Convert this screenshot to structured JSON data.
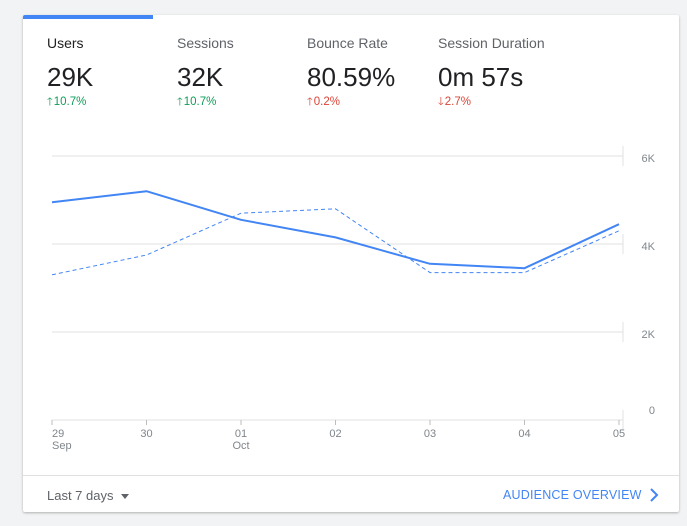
{
  "metrics": [
    {
      "label": "Users",
      "value": "29K",
      "change": "10.7%",
      "direction": "up",
      "active": true
    },
    {
      "label": "Sessions",
      "value": "32K",
      "change": "10.7%",
      "direction": "up",
      "active": false
    },
    {
      "label": "Bounce Rate",
      "value": "80.59%",
      "change": "0.2%",
      "direction": "up",
      "active": false
    },
    {
      "label": "Session Duration",
      "value": "0m 57s",
      "change": "2.7%",
      "direction": "down",
      "active": false
    }
  ],
  "colors": {
    "accent": "#4285f4",
    "positive": "#0f9d58",
    "negative": "#db4437"
  },
  "chart_data": {
    "type": "line",
    "x": [
      "29 Sep",
      "30",
      "01 Oct",
      "02",
      "03",
      "04",
      "05"
    ],
    "x_tick_labels": [
      {
        "top": "29",
        "bottom": "Sep"
      },
      {
        "top": "30",
        "bottom": ""
      },
      {
        "top": "01",
        "bottom": "Oct"
      },
      {
        "top": "02",
        "bottom": ""
      },
      {
        "top": "03",
        "bottom": ""
      },
      {
        "top": "04",
        "bottom": ""
      },
      {
        "top": "05",
        "bottom": ""
      }
    ],
    "y_ticks": [
      {
        "value": 0,
        "label": "0"
      },
      {
        "value": 2000,
        "label": "2K"
      },
      {
        "value": 4000,
        "label": "4K"
      },
      {
        "value": 6000,
        "label": "6K"
      }
    ],
    "ylim": [
      0,
      6000
    ],
    "grid": true,
    "series": [
      {
        "style": "solid",
        "values": [
          4950,
          5200,
          4550,
          4150,
          3550,
          3450,
          4450
        ]
      },
      {
        "style": "dashed",
        "values": [
          3300,
          3750,
          4700,
          4800,
          3350,
          3350,
          4300
        ]
      }
    ]
  },
  "footer": {
    "date_range": "Last 7 days",
    "overview_link": "AUDIENCE OVERVIEW"
  }
}
